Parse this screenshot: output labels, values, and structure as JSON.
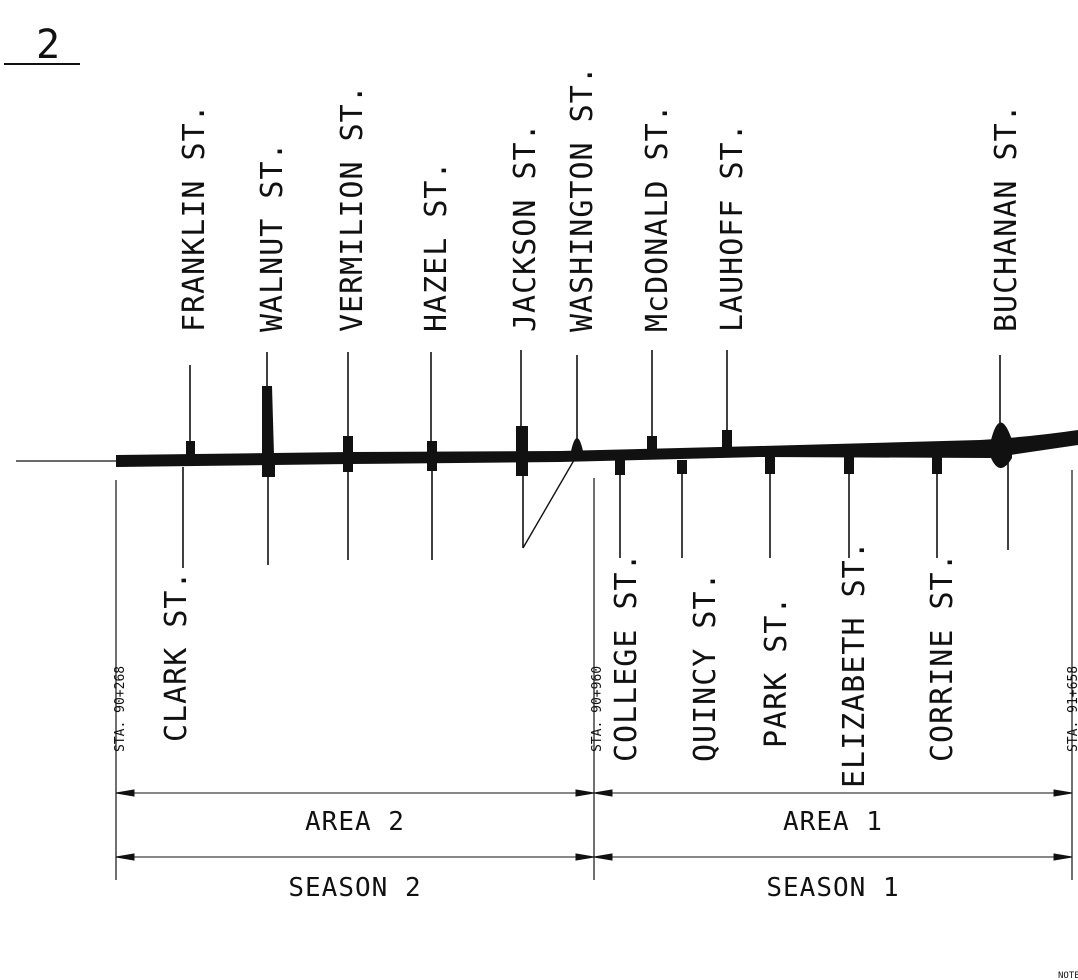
{
  "sheet_number": "2",
  "streets_north": [
    {
      "label": "FRANKLIN ST."
    },
    {
      "label": "WALNUT ST."
    },
    {
      "label": "VERMILION ST."
    },
    {
      "label": "HAZEL ST."
    },
    {
      "label": "JACKSON ST."
    },
    {
      "label": "WASHINGTON ST."
    },
    {
      "label": "McDONALD ST."
    },
    {
      "label": "LAUHOFF ST."
    },
    {
      "label": "BUCHANAN ST."
    }
  ],
  "streets_south": [
    {
      "label": "CLARK ST."
    },
    {
      "label": "COLLEGE ST."
    },
    {
      "label": "QUINCY ST."
    },
    {
      "label": "PARK ST."
    },
    {
      "label": "ELIZABETH ST."
    },
    {
      "label": "CORRINE ST."
    }
  ],
  "stations": [
    {
      "label": "STA. 90+268"
    },
    {
      "label": "STA. 90+960"
    },
    {
      "label": "STA. 91+658"
    }
  ],
  "areas": [
    {
      "label": "AREA 2"
    },
    {
      "label": "AREA 1"
    }
  ],
  "seasons": [
    {
      "label": "SEASON 2"
    },
    {
      "label": "SEASON 1"
    }
  ],
  "corner_note": "NOTE"
}
